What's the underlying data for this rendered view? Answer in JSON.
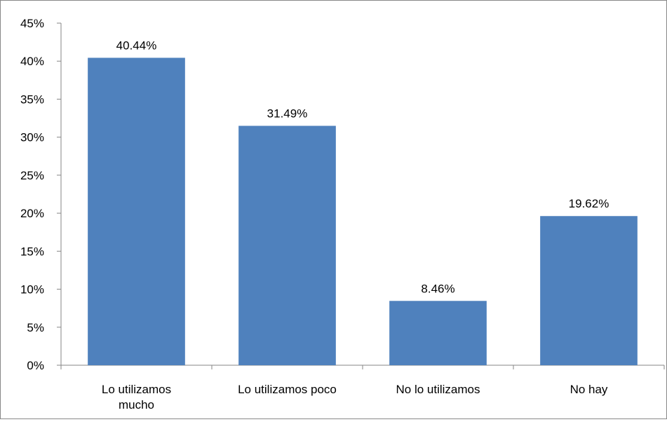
{
  "chart_data": {
    "type": "bar",
    "categories": [
      [
        "Lo utilizamos",
        "mucho"
      ],
      [
        "Lo utilizamos poco"
      ],
      [
        "No lo utilizamos"
      ],
      [
        "No hay"
      ]
    ],
    "values": [
      40.44,
      31.49,
      8.46,
      19.62
    ],
    "data_labels": [
      "40.44%",
      "31.49%",
      "8.46%",
      "19.62%"
    ],
    "y_ticks": [
      0,
      5,
      10,
      15,
      20,
      25,
      30,
      35,
      40,
      45
    ],
    "y_tick_labels": [
      "0%",
      "5%",
      "10%",
      "15%",
      "20%",
      "25%",
      "30%",
      "35%",
      "40%",
      "45%"
    ],
    "ylim": [
      0,
      45
    ],
    "bar_color": "#4F81BD",
    "axis_color": "#868686",
    "grid": false,
    "legend": "none"
  }
}
